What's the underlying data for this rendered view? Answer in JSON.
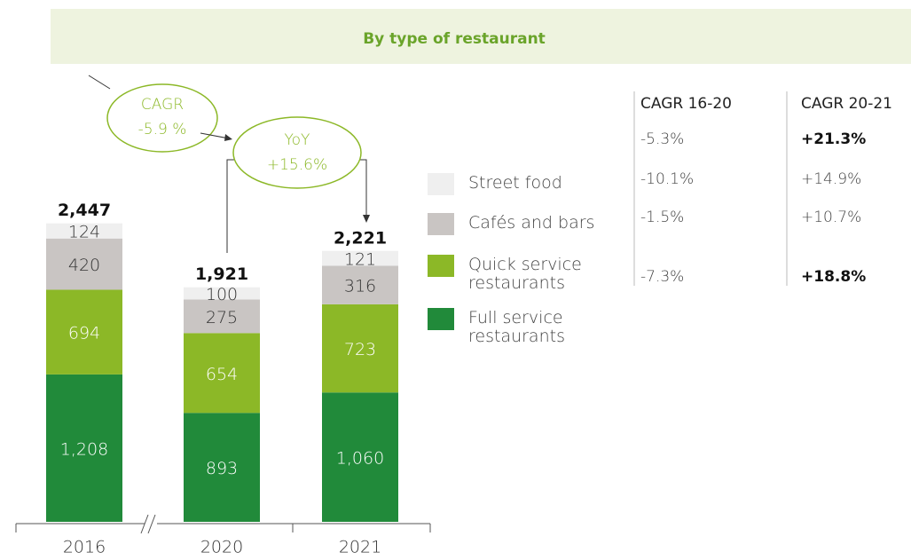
{
  "chart_data": {
    "type": "stacked_bar",
    "title": "By type of restaurant",
    "categories": [
      "2016",
      "2020",
      "2021"
    ],
    "series": [
      {
        "name": "Full service restaurants",
        "color": "#218a3a",
        "values": [
          1208,
          893,
          1060
        ],
        "value_labels": [
          "1,208",
          "893",
          "1,060"
        ]
      },
      {
        "name": "Quick service restaurants",
        "color": "#8cb827",
        "values": [
          694,
          654,
          723
        ],
        "value_labels": [
          "694",
          "654",
          "723"
        ]
      },
      {
        "name": "Cafés and bars",
        "color": "#c9c5c3",
        "values": [
          420,
          275,
          316
        ],
        "value_labels": [
          "420",
          "275",
          "316"
        ]
      },
      {
        "name": "Street food",
        "color": "#efefef",
        "values": [
          124,
          100,
          121
        ],
        "value_labels": [
          "124",
          "100",
          "121"
        ]
      }
    ],
    "totals": [
      2447,
      1921,
      2221
    ],
    "total_labels": [
      "2,447",
      "1,921",
      "2,221"
    ],
    "annotations": {
      "cagr_title": "CAGR",
      "cagr_value": "-5.9 %",
      "yoy_title": "YoY",
      "yoy_value": "+15.6%"
    },
    "growth_table": [
      {
        "header": "CAGR 16-20",
        "values": [
          "-5.3%",
          "-10.1%",
          "-1.5%",
          "-7.3%"
        ],
        "bold": [
          false,
          false,
          false,
          false
        ]
      },
      {
        "header": "CAGR 20-21",
        "values": [
          "+21.3%",
          "+14.9%",
          "+10.7%",
          "+18.8%"
        ],
        "bold": [
          true,
          false,
          false,
          true
        ]
      }
    ]
  }
}
